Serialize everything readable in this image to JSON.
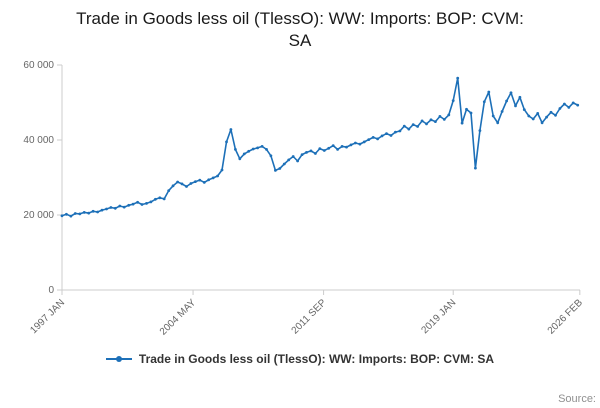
{
  "title": "Trade in Goods less oil (TlessO): WW: Imports: BOP: CVM: SA",
  "legend": {
    "label": "Trade in Goods less oil (TlessO): WW: Imports: BOP: CVM: SA"
  },
  "source": {
    "label": "Source:"
  },
  "chart_data": {
    "type": "line",
    "title": "Trade in Goods less oil (TlessO): WW: Imports: BOP: CVM: SA",
    "xlabel": "",
    "ylabel": "",
    "grid": false,
    "legend_position": "bottom",
    "ylim": [
      0,
      60000
    ],
    "x_domain": [
      1997.0,
      2026.13
    ],
    "x_start": 1997.0,
    "x_step": 0.25,
    "axis_color": "#cccccc",
    "y_ticks": [
      {
        "v": 0,
        "label": "0"
      },
      {
        "v": 20000,
        "label": "20 000"
      },
      {
        "v": 40000,
        "label": "40 000"
      },
      {
        "v": 60000,
        "label": "60 000"
      }
    ],
    "x_ticks": [
      {
        "t": 1997.0,
        "label": "1997 JAN"
      },
      {
        "t": 2004.37,
        "label": "2004 MAY"
      },
      {
        "t": 2011.71,
        "label": "2011 SEP"
      },
      {
        "t": 2019.0,
        "label": "2019 JAN"
      },
      {
        "t": 2026.12,
        "label": "2026 FEB"
      }
    ],
    "series": [
      {
        "name": "Trade in Goods less oil (TlessO): WW: Imports: BOP: CVM: SA",
        "color": "#1d70b8",
        "values": [
          19800,
          20200,
          19700,
          20400,
          20300,
          20700,
          20500,
          21000,
          20800,
          21300,
          21600,
          22000,
          21800,
          22400,
          22100,
          22600,
          22900,
          23400,
          22800,
          23100,
          23500,
          24200,
          24600,
          24300,
          26500,
          27800,
          28800,
          28300,
          27600,
          28400,
          28900,
          29300,
          28700,
          29400,
          29900,
          30400,
          32000,
          39500,
          42800,
          37500,
          35000,
          36300,
          37000,
          37600,
          37900,
          38300,
          37500,
          35800,
          31900,
          32400,
          33600,
          34700,
          35600,
          34400,
          36100,
          36700,
          37100,
          36400,
          37700,
          37200,
          37800,
          38500,
          37500,
          38300,
          38100,
          38700,
          39200,
          38900,
          39500,
          40100,
          40700,
          40300,
          41100,
          41700,
          41200,
          42100,
          42400,
          43700,
          42900,
          44100,
          43600,
          45100,
          44300,
          45400,
          44900,
          46300,
          45500,
          46700,
          50500,
          56500,
          44500,
          48200,
          47200,
          32500,
          42500,
          50200,
          52800,
          46400,
          44600,
          47600,
          50400,
          52600,
          49100,
          51400,
          48100,
          46400,
          45600,
          47100,
          44600,
          46100,
          47400,
          46600,
          48400,
          49600,
          48700,
          49900,
          49300
        ]
      }
    ]
  }
}
